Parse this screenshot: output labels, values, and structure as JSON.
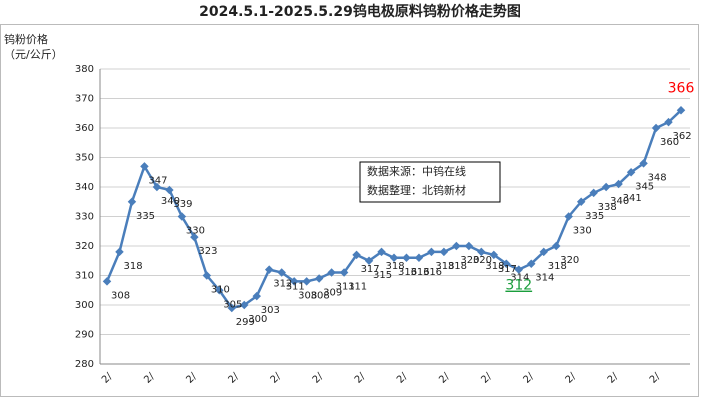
{
  "chart_data": {
    "type": "line",
    "title": "2024.5.1-2025.5.29钨电极原料钨粉价格走势图",
    "y_label_lines": [
      "钨粉价格",
      "（元/公斤）"
    ],
    "notes": [
      "数据来源：中钨在线",
      "数据整理：北钨新材"
    ],
    "xtick_labels": [
      "2/",
      "2/",
      "2/",
      "2/",
      "2/",
      "2/",
      "2/",
      "2/",
      "2/",
      "2/",
      "2/",
      "2/",
      "2/",
      "2/"
    ],
    "color": "#4a7ebb",
    "values": [
      308,
      318,
      335,
      347,
      340,
      339,
      330,
      323,
      310,
      305,
      299,
      300,
      303,
      312,
      311,
      308,
      308,
      309,
      311,
      311,
      317,
      315,
      318,
      316,
      316,
      316,
      318,
      318,
      320,
      320,
      318,
      317,
      314,
      312,
      314,
      318,
      320,
      330,
      335,
      338,
      340,
      341,
      345,
      348,
      360,
      362,
      366
    ],
    "highlights": [
      {
        "index": 33,
        "color": "#1a9e3c"
      },
      {
        "index": 46,
        "color": "#ff0000"
      }
    ],
    "ylim": [
      280,
      380
    ],
    "yticks": [
      280,
      290,
      300,
      310,
      320,
      330,
      340,
      350,
      360,
      370,
      380
    ],
    "grid": true
  }
}
